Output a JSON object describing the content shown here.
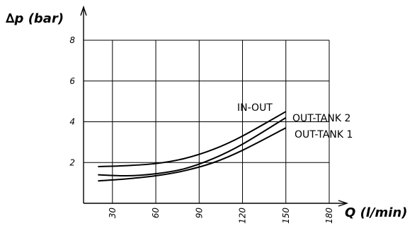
{
  "chart_data": {
    "type": "line",
    "xlabel": "Q (l/min)",
    "ylabel": "∆p (bar)",
    "x_ticks": [
      "30",
      "60",
      "90",
      "120",
      "150",
      "180"
    ],
    "y_ticks": [
      "2",
      "4",
      "6",
      "8"
    ],
    "xlim": [
      10,
      180
    ],
    "ylim": [
      0,
      8
    ],
    "grid": true,
    "series": [
      {
        "name": "IN-OUT",
        "x": [
          20,
          40,
          60,
          80,
          100,
          120,
          150
        ],
        "y": [
          1.8,
          1.85,
          1.95,
          2.2,
          2.65,
          3.3,
          4.5
        ]
      },
      {
        "name": "OUT-TANK 2",
        "x": [
          20,
          40,
          60,
          80,
          100,
          120,
          150
        ],
        "y": [
          1.4,
          1.35,
          1.45,
          1.7,
          2.2,
          2.9,
          4.2
        ]
      },
      {
        "name": "OUT-TANK 1",
        "x": [
          20,
          40,
          60,
          80,
          100,
          120,
          150
        ],
        "y": [
          1.1,
          1.2,
          1.35,
          1.6,
          2.0,
          2.6,
          3.7
        ]
      }
    ]
  }
}
